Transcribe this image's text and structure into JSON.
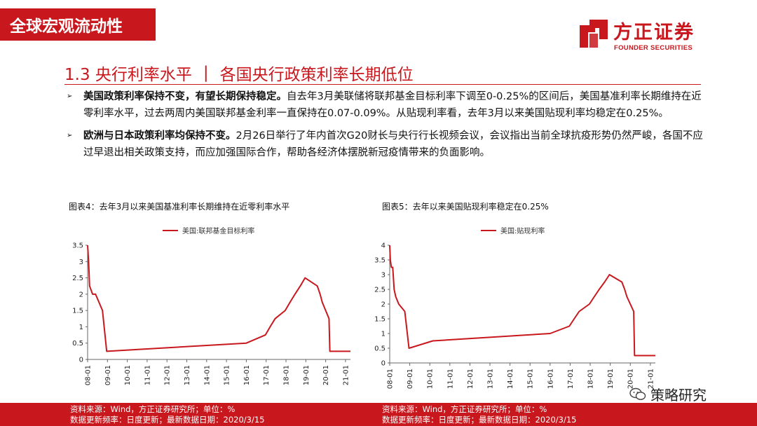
{
  "header": {
    "section_tag": "全球宏观流动性",
    "logo_cn": "方正证券",
    "logo_en": "FOUNDER SECURITIES"
  },
  "title": {
    "number": "1.3 央行利率水平",
    "separator": "|",
    "subtitle": "各国央行政策利率长期低位"
  },
  "bullets": [
    {
      "bold": "美国政策利率保持不变，有望长期保持稳定。",
      "text": "自去年3月美联储将联邦基金目标利率下调至0-0.25%的区间后，美国基准利率长期维持在近零利率水平，过去两周内美国联邦基金利率一直保持在0.07-0.09%。从贴现利率看，去年3月以来美国贴现利率均稳定在0.25%。"
    },
    {
      "bold": "欧洲与日本政策利率均保持不变。",
      "text": "2月26日举行了年内首次G20财长与央行行长视频会议，会议指出当前全球抗疫形势仍然严峻，各国不应过早退出相关政策支持，而应加强国际合作，帮助各经济体摆脱新冠疫情带来的负面影响。"
    }
  ],
  "figures": [
    {
      "title": "图表4：去年3月以来美国基准利率长期维持在近零利率水平",
      "source": "资料来源：Wind，方正证券研究所；单位：%",
      "update": "数据更新频率：日度更新；最新数据日期：2020/3/15"
    },
    {
      "title": "图表5：去年以来美国贴现利率稳定在0.25%",
      "source": "资料来源：Wind，方正证券研究所；单位：%",
      "update": "数据更新频率：日度更新；最新数据日期：2020/3/15"
    }
  ],
  "watermark": "策略研究",
  "colors": {
    "brand_red": "#c8181e",
    "series_red": "#c8181e",
    "axis": "#666666"
  },
  "chart_data": [
    {
      "type": "line",
      "series": [
        {
          "name": "美国:联邦基金目标利率",
          "color": "#c8181e"
        }
      ],
      "x": [
        2008.0,
        2008.05,
        2008.1,
        2008.25,
        2008.4,
        2008.75,
        2008.96,
        2016.0,
        2016.96,
        2017.2,
        2017.45,
        2017.96,
        2018.2,
        2018.45,
        2018.72,
        2018.96,
        2019.58,
        2019.72,
        2019.83,
        2020.17,
        2020.21,
        2021.25
      ],
      "values": [
        3.5,
        3.0,
        2.25,
        2.0,
        2.0,
        1.5,
        0.25,
        0.5,
        0.75,
        1.0,
        1.25,
        1.5,
        1.75,
        2.0,
        2.25,
        2.5,
        2.25,
        2.0,
        1.75,
        1.25,
        0.25,
        0.25
      ],
      "x_ticks": [
        "08-01",
        "09-01",
        "10-01",
        "11-01",
        "12-01",
        "13-01",
        "14-01",
        "15-01",
        "16-01",
        "17-01",
        "18-01",
        "19-01",
        "20-01",
        "21-01"
      ],
      "y_ticks": [
        "0",
        "0.5",
        "1",
        "1.5",
        "2",
        "2.5",
        "3",
        "3.5"
      ],
      "ylim": [
        0,
        3.5
      ],
      "xlim": [
        2008.0,
        2021.25
      ],
      "legend": "top-center"
    },
    {
      "type": "line",
      "series": [
        {
          "name": "美国:贴现利率",
          "color": "#c8181e"
        }
      ],
      "x": [
        2008.0,
        2008.03,
        2008.08,
        2008.15,
        2008.22,
        2008.3,
        2008.45,
        2008.75,
        2008.96,
        2010.15,
        2016.0,
        2016.96,
        2017.2,
        2017.45,
        2017.96,
        2018.2,
        2018.45,
        2018.72,
        2018.96,
        2019.58,
        2019.72,
        2019.83,
        2020.17,
        2020.21,
        2021.25
      ],
      "values": [
        4.0,
        3.5,
        3.25,
        3.25,
        2.5,
        2.25,
        2.0,
        1.75,
        0.5,
        0.75,
        1.0,
        1.25,
        1.5,
        1.75,
        2.0,
        2.25,
        2.5,
        2.75,
        3.0,
        2.75,
        2.5,
        2.25,
        1.75,
        0.25,
        0.25
      ],
      "x_ticks": [
        "08-01",
        "09-01",
        "10-01",
        "11-01",
        "12-01",
        "13-01",
        "14-01",
        "15-01",
        "16-01",
        "17-01",
        "18-01",
        "19-01",
        "20-01",
        "21-01"
      ],
      "y_ticks": [
        "0",
        "0.5",
        "1",
        "1.5",
        "2",
        "2.5",
        "3",
        "3.5",
        "4"
      ],
      "ylim": [
        0,
        4
      ],
      "xlim": [
        2008.0,
        2021.25
      ],
      "legend": "top-center"
    }
  ]
}
